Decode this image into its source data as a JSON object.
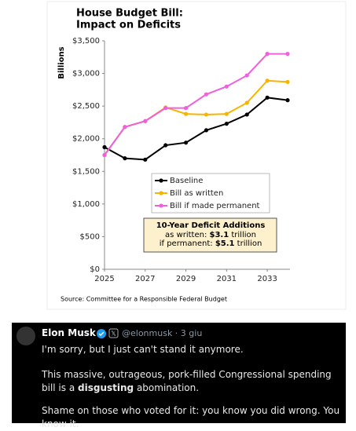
{
  "chart_data": {
    "type": "line",
    "title": [
      "House Budget Bill:",
      "Impact on Deficits"
    ],
    "y_label": "Billions",
    "x": [
      2025,
      2026,
      2027,
      2028,
      2029,
      2030,
      2031,
      2032,
      2033,
      2034
    ],
    "series": [
      {
        "name": "Baseline",
        "color": "#000000",
        "values": [
          1870,
          1700,
          1680,
          1900,
          1940,
          2130,
          2230,
          2370,
          2630,
          2590
        ]
      },
      {
        "name": "Bill as written",
        "color": "#f7b500",
        "values": [
          1750,
          2180,
          2270,
          2480,
          2380,
          2370,
          2380,
          2550,
          2890,
          2870
        ]
      },
      {
        "name": "Bill if made permanent",
        "color": "#f060dc",
        "values": [
          1750,
          2180,
          2270,
          2470,
          2470,
          2680,
          2800,
          2970,
          3300,
          3300
        ]
      }
    ],
    "xlim": [
      2025,
      2034
    ],
    "xticks": [
      2025,
      2027,
      2029,
      2031,
      2033
    ],
    "ylim": [
      0,
      3500
    ],
    "yticks": [
      {
        "value": 0,
        "label": "$0"
      },
      {
        "value": 500,
        "label": "$500"
      },
      {
        "value": 1000,
        "label": "$1,000"
      },
      {
        "value": 1500,
        "label": "$1,500"
      },
      {
        "value": 2000,
        "label": "$2,000"
      },
      {
        "value": 2500,
        "label": "$2,500"
      },
      {
        "value": 3000,
        "label": "$3,000"
      },
      {
        "value": 3500,
        "label": "$3,500"
      }
    ],
    "grid": false,
    "legend_position": "center",
    "annotation": {
      "title": "10-Year Deficit Additions",
      "lines": [
        [
          "as written: ",
          "$3.1",
          " trillion"
        ],
        [
          "if permanent: ",
          "$5.1",
          " trillion"
        ]
      ]
    },
    "source": "Source: Committee for a Responsible Federal Budget"
  },
  "tweet": {
    "name": "Elon Musk",
    "handle": "@elonmusk · 3 giu",
    "paragraphs": [
      [
        "I'm sorry, but I just can't stand it anymore."
      ],
      [
        "This massive, outrageous, pork-filled Congressional spending bill is a ",
        "disgusting",
        " abomination."
      ],
      [
        "Shame on those who voted for it: you know you did wrong. You know it."
      ]
    ]
  }
}
